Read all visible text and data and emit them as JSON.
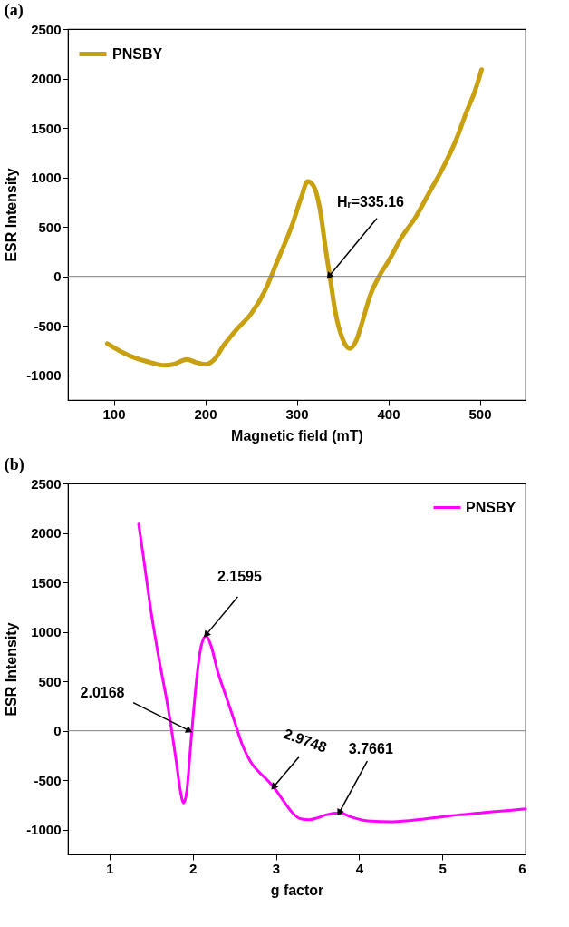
{
  "chart_data": [
    {
      "type": "line",
      "title": "(a)",
      "xlabel": "Magnetic field (mT)",
      "ylabel": "ESR Intensity",
      "xlim": [
        50,
        550
      ],
      "xticks": [
        100,
        200,
        300,
        400,
        500
      ],
      "ylim": [
        -1250,
        2500
      ],
      "yticks": [
        -1000,
        -500,
        0,
        500,
        1000,
        1500,
        2000,
        2500
      ],
      "legend": "top left",
      "grid": false,
      "ref_lines": [
        {
          "axis": "y",
          "value": 0,
          "color": "#808080"
        }
      ],
      "annotations": [
        {
          "text": "Hᵣ=335.16",
          "x": 335.16,
          "y": 0
        }
      ],
      "series": [
        {
          "name": "PNSBY",
          "color": "#c8a010",
          "x": [
            93,
            110,
            125,
            140,
            155,
            165,
            180,
            190,
            200,
            210,
            220,
            235,
            250,
            265,
            280,
            295,
            305,
            312,
            318,
            325,
            332,
            337,
            342,
            350,
            358,
            365,
            372,
            380,
            390,
            400,
            415,
            430,
            445,
            460,
            475,
            485,
            495,
            502
          ],
          "values": [
            -680,
            -770,
            -830,
            -870,
            -900,
            -890,
            -840,
            -870,
            -890,
            -840,
            -700,
            -530,
            -380,
            -150,
            180,
            520,
            800,
            960,
            920,
            700,
            250,
            -50,
            -350,
            -630,
            -730,
            -650,
            -450,
            -200,
            0,
            150,
            400,
            600,
            850,
            1100,
            1400,
            1650,
            1880,
            2090
          ]
        }
      ]
    },
    {
      "type": "line",
      "title": "(b)",
      "xlabel": "g factor",
      "ylabel": "ESR Intensity",
      "xlim": [
        0.5,
        6
      ],
      "xticks": [
        1,
        2,
        3,
        4,
        5,
        6
      ],
      "ylim": [
        -1250,
        2500
      ],
      "yticks": [
        -1000,
        -500,
        0,
        500,
        1000,
        1500,
        2000,
        2500
      ],
      "legend": "top right",
      "grid": false,
      "ref_lines": [
        {
          "axis": "y",
          "value": 0,
          "color": "#808080"
        }
      ],
      "annotations": [
        {
          "text": "2.0168",
          "x": 1.96,
          "y": 0
        },
        {
          "text": "2.1595",
          "x": 2.16,
          "y": 970
        },
        {
          "text": "2.9748",
          "x": 2.97,
          "y": -570
        },
        {
          "text": "3.7661",
          "x": 3.76,
          "y": -830
        }
      ],
      "series": [
        {
          "name": "PNSBY",
          "color": "#ff00ff",
          "x": [
            1.35,
            1.4,
            1.5,
            1.6,
            1.7,
            1.8,
            1.85,
            1.89,
            1.93,
            1.97,
            2.0,
            2.05,
            2.1,
            2.16,
            2.22,
            2.3,
            2.4,
            2.5,
            2.6,
            2.7,
            2.8,
            2.9,
            3.0,
            3.1,
            3.2,
            3.3,
            3.4,
            3.5,
            3.6,
            3.77,
            3.9,
            4.1,
            4.4,
            4.8,
            5.2,
            5.6,
            6.0
          ],
          "values": [
            2090,
            1800,
            1200,
            700,
            250,
            -300,
            -600,
            -730,
            -600,
            -200,
            100,
            550,
            850,
            960,
            860,
            600,
            350,
            100,
            -150,
            -320,
            -420,
            -500,
            -600,
            -720,
            -830,
            -890,
            -900,
            -880,
            -850,
            -830,
            -870,
            -910,
            -920,
            -890,
            -850,
            -820,
            -790
          ]
        }
      ]
    }
  ]
}
